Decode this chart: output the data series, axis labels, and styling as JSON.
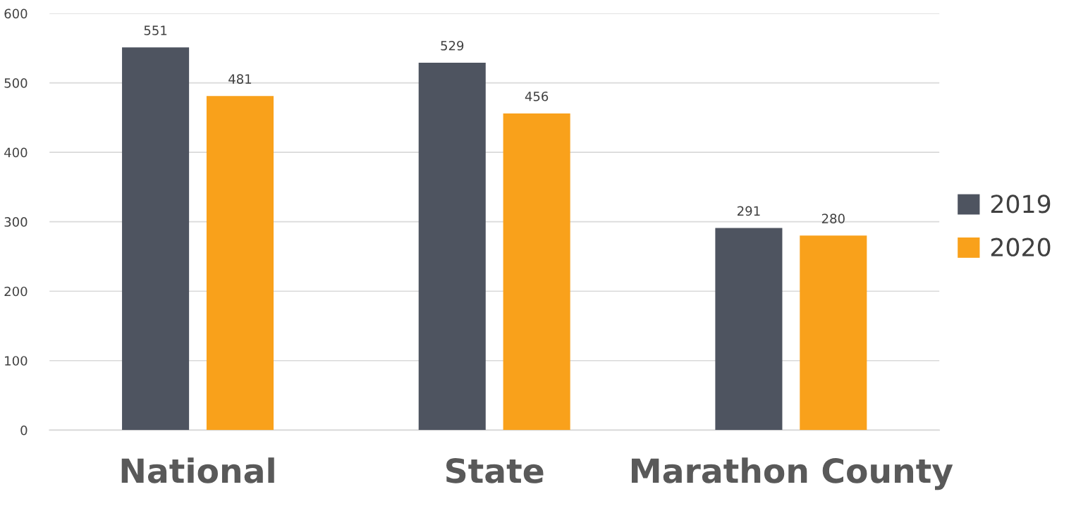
{
  "chart_data": {
    "type": "bar",
    "categories": [
      "National",
      "State",
      "Marathon County"
    ],
    "series": [
      {
        "name": "2019",
        "color": "#4e5460",
        "values": [
          551,
          529,
          291
        ]
      },
      {
        "name": "2020",
        "color": "#f9a11b",
        "values": [
          481,
          456,
          280
        ]
      }
    ],
    "ylim": [
      0,
      600
    ],
    "yticks": [
      0,
      100,
      200,
      300,
      400,
      500,
      600
    ],
    "grid": "y",
    "legend": "right",
    "data_labels": true
  }
}
